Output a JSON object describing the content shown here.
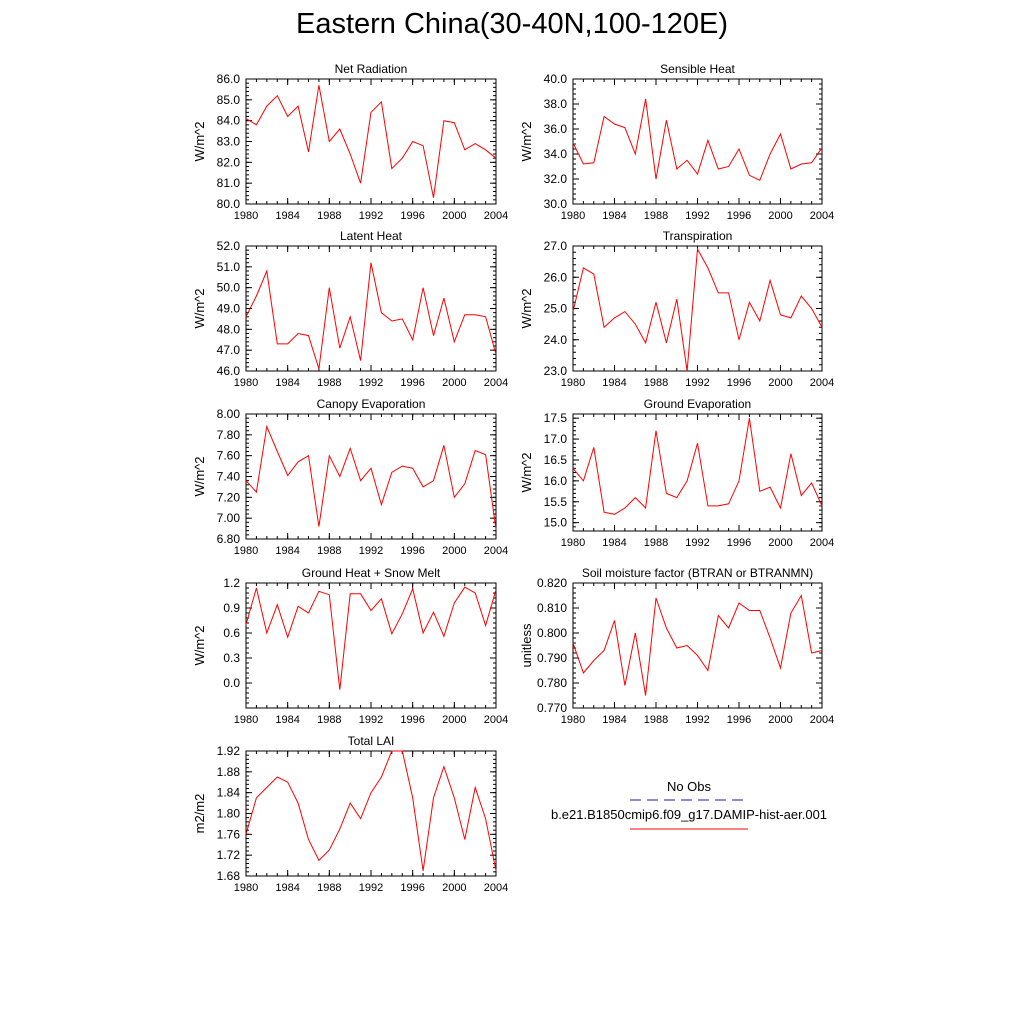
{
  "figure": {
    "title": "Eastern China(30-40N,100-120E)"
  },
  "legend": {
    "entries": [
      {
        "label": "No Obs",
        "color": "#1a1aa8",
        "dash": true
      },
      {
        "label": "b.e21.B1850cmip6.f09_g17.DAMIP-hist-aer.001",
        "color": "#ff0000",
        "dash": false
      }
    ]
  },
  "chart_data": [
    {
      "type": "line",
      "title": "Net Radiation",
      "ylabel": "W/m^2",
      "xlim": [
        1980,
        2004
      ],
      "ylim": [
        80.0,
        86.0
      ],
      "xticks": [
        "1980",
        "1984",
        "1988",
        "1992",
        "1996",
        "2000",
        "2004"
      ],
      "yticks": [
        "80.0",
        "81.0",
        "82.0",
        "83.0",
        "84.0",
        "85.0",
        "86.0"
      ],
      "series": [
        {
          "color": "#ff0000",
          "x": [
            1980,
            1981,
            1982,
            1983,
            1984,
            1985,
            1986,
            1987,
            1988,
            1989,
            1990,
            1991,
            1992,
            1993,
            1994,
            1995,
            1996,
            1997,
            1998,
            1999,
            2000,
            2001,
            2002,
            2003,
            2004
          ],
          "values": [
            84.1,
            83.8,
            84.7,
            85.2,
            84.2,
            84.7,
            82.5,
            85.7,
            83.0,
            83.6,
            82.4,
            81.0,
            84.4,
            84.9,
            81.7,
            82.2,
            83.0,
            82.8,
            80.3,
            84.0,
            83.9,
            82.6,
            82.9,
            82.6,
            82.2
          ]
        }
      ]
    },
    {
      "type": "line",
      "title": "Sensible Heat",
      "ylabel": "W/m^2",
      "xlim": [
        1980,
        2004
      ],
      "ylim": [
        30.0,
        40.0
      ],
      "xticks": [
        "1980",
        "1984",
        "1988",
        "1992",
        "1996",
        "2000",
        "2004"
      ],
      "yticks": [
        "30.0",
        "32.0",
        "34.0",
        "36.0",
        "38.0",
        "40.0"
      ],
      "series": [
        {
          "color": "#ff0000",
          "x": [
            1980,
            1981,
            1982,
            1983,
            1984,
            1985,
            1986,
            1987,
            1988,
            1989,
            1990,
            1991,
            1992,
            1993,
            1994,
            1995,
            1996,
            1997,
            1998,
            1999,
            2000,
            2001,
            2002,
            2003,
            2004
          ],
          "values": [
            34.9,
            33.2,
            33.3,
            37.0,
            36.4,
            36.1,
            34.0,
            38.4,
            32.0,
            36.7,
            32.8,
            33.5,
            32.4,
            35.1,
            32.8,
            33.0,
            34.4,
            32.3,
            31.9,
            34.0,
            35.6,
            32.8,
            33.2,
            33.3,
            34.5
          ]
        }
      ]
    },
    {
      "type": "line",
      "title": "Latent Heat",
      "ylabel": "W/m^2",
      "xlim": [
        1980,
        2004
      ],
      "ylim": [
        46.0,
        52.0
      ],
      "xticks": [
        "1980",
        "1984",
        "1988",
        "1992",
        "1996",
        "2000",
        "2004"
      ],
      "yticks": [
        "46.0",
        "47.0",
        "48.0",
        "49.0",
        "50.0",
        "51.0",
        "52.0"
      ],
      "series": [
        {
          "color": "#ff0000",
          "x": [
            1980,
            1981,
            1982,
            1983,
            1984,
            1985,
            1986,
            1987,
            1988,
            1989,
            1990,
            1991,
            1992,
            1993,
            1994,
            1995,
            1996,
            1997,
            1998,
            1999,
            2000,
            2001,
            2002,
            2003,
            2004
          ],
          "values": [
            48.6,
            49.6,
            50.8,
            47.3,
            47.3,
            47.8,
            47.7,
            46.1,
            50.0,
            47.1,
            48.6,
            46.5,
            51.2,
            48.8,
            48.4,
            48.5,
            47.5,
            50.0,
            47.7,
            49.5,
            47.4,
            48.7,
            48.7,
            48.6,
            46.8
          ]
        }
      ]
    },
    {
      "type": "line",
      "title": "Transpiration",
      "ylabel": "W/m^2",
      "xlim": [
        1980,
        2004
      ],
      "ylim": [
        23.0,
        27.0
      ],
      "xticks": [
        "1980",
        "1984",
        "1988",
        "1992",
        "1996",
        "2000",
        "2004"
      ],
      "yticks": [
        "23.0",
        "24.0",
        "25.0",
        "26.0",
        "27.0"
      ],
      "series": [
        {
          "color": "#ff0000",
          "x": [
            1980,
            1981,
            1982,
            1983,
            1984,
            1985,
            1986,
            1987,
            1988,
            1989,
            1990,
            1991,
            1992,
            1993,
            1994,
            1995,
            1996,
            1997,
            1998,
            1999,
            2000,
            2001,
            2002,
            2003,
            2004
          ],
          "values": [
            24.9,
            26.3,
            26.1,
            24.4,
            24.7,
            24.9,
            24.5,
            23.9,
            25.2,
            23.9,
            25.3,
            23.0,
            26.9,
            26.3,
            25.5,
            25.5,
            24.0,
            25.2,
            24.6,
            25.9,
            24.8,
            24.7,
            25.4,
            25.0,
            24.4
          ]
        }
      ]
    },
    {
      "type": "line",
      "title": "Canopy Evaporation",
      "ylabel": "W/m^2",
      "xlim": [
        1980,
        2004
      ],
      "ylim": [
        6.8,
        8.0
      ],
      "xticks": [
        "1980",
        "1984",
        "1988",
        "1992",
        "1996",
        "2000",
        "2004"
      ],
      "yticks": [
        "6.80",
        "7.00",
        "7.20",
        "7.40",
        "7.60",
        "7.80",
        "8.00"
      ],
      "series": [
        {
          "color": "#ff0000",
          "x": [
            1980,
            1981,
            1982,
            1983,
            1984,
            1985,
            1986,
            1987,
            1988,
            1989,
            1990,
            1991,
            1992,
            1993,
            1994,
            1995,
            1996,
            1997,
            1998,
            1999,
            2000,
            2001,
            2002,
            2003,
            2004
          ],
          "values": [
            7.36,
            7.25,
            7.88,
            7.64,
            7.41,
            7.54,
            7.6,
            6.92,
            7.6,
            7.4,
            7.67,
            7.36,
            7.48,
            7.13,
            7.44,
            7.5,
            7.48,
            7.3,
            7.36,
            7.7,
            7.2,
            7.33,
            7.65,
            7.61,
            6.89
          ]
        }
      ]
    },
    {
      "type": "line",
      "title": "Ground Evaporation",
      "ylabel": "W/m^2",
      "xlim": [
        1980,
        2004
      ],
      "ylim": [
        14.8,
        17.6
      ],
      "xticks": [
        "1980",
        "1984",
        "1988",
        "1992",
        "1996",
        "2000",
        "2004"
      ],
      "yticks": [
        "15.0",
        "15.5",
        "16.0",
        "16.5",
        "17.0",
        "17.5"
      ],
      "series": [
        {
          "color": "#ff0000",
          "x": [
            1980,
            1981,
            1982,
            1983,
            1984,
            1985,
            1986,
            1987,
            1988,
            1989,
            1990,
            1991,
            1992,
            1993,
            1994,
            1995,
            1996,
            1997,
            1998,
            1999,
            2000,
            2001,
            2002,
            2003,
            2004
          ],
          "values": [
            16.3,
            16.0,
            16.8,
            15.25,
            15.2,
            15.35,
            15.6,
            15.35,
            17.2,
            15.7,
            15.6,
            16.0,
            16.9,
            15.4,
            15.4,
            15.45,
            16.0,
            17.5,
            15.75,
            15.85,
            15.35,
            16.65,
            15.65,
            15.95,
            15.4
          ]
        }
      ]
    },
    {
      "type": "line",
      "title": "Ground Heat + Snow Melt",
      "ylabel": "W/m^2",
      "xlim": [
        1980,
        2004
      ],
      "ylim": [
        -0.3,
        1.2
      ],
      "xticks": [
        "1980",
        "1984",
        "1988",
        "1992",
        "1996",
        "2000",
        "2004"
      ],
      "yticks": [
        "0.0",
        "0.3",
        "0.6",
        "0.9",
        "1.2"
      ],
      "series": [
        {
          "color": "#ff0000",
          "x": [
            1980,
            1981,
            1982,
            1983,
            1984,
            1985,
            1986,
            1987,
            1988,
            1989,
            1990,
            1991,
            1992,
            1993,
            1994,
            1995,
            1996,
            1997,
            1998,
            1999,
            2000,
            2001,
            2002,
            2003,
            2004
          ],
          "values": [
            0.7,
            1.14,
            0.6,
            0.94,
            0.55,
            0.92,
            0.84,
            1.1,
            1.06,
            -0.08,
            1.07,
            1.07,
            0.87,
            1.01,
            0.59,
            0.83,
            1.13,
            0.6,
            0.85,
            0.56,
            0.96,
            1.15,
            1.08,
            0.69,
            1.12
          ]
        }
      ]
    },
    {
      "type": "line",
      "title": "Soil moisture factor (BTRAN or BTRANMN)",
      "ylabel": "unitless",
      "xlim": [
        1980,
        2004
      ],
      "ylim": [
        0.77,
        0.82
      ],
      "xticks": [
        "1980",
        "1984",
        "1988",
        "1992",
        "1996",
        "2000",
        "2004"
      ],
      "yticks": [
        "0.770",
        "0.780",
        "0.790",
        "0.800",
        "0.810",
        "0.820"
      ],
      "series": [
        {
          "color": "#ff0000",
          "x": [
            1980,
            1981,
            1982,
            1983,
            1984,
            1985,
            1986,
            1987,
            1988,
            1989,
            1990,
            1991,
            1992,
            1993,
            1994,
            1995,
            1996,
            1997,
            1998,
            1999,
            2000,
            2001,
            2002,
            2003,
            2004
          ],
          "values": [
            0.796,
            0.784,
            0.789,
            0.793,
            0.805,
            0.779,
            0.8,
            0.775,
            0.814,
            0.802,
            0.794,
            0.795,
            0.791,
            0.785,
            0.807,
            0.802,
            0.812,
            0.809,
            0.809,
            0.798,
            0.786,
            0.808,
            0.815,
            0.792,
            0.793
          ]
        }
      ]
    },
    {
      "type": "line",
      "title": "Total LAI",
      "ylabel": "m2/m2",
      "xlim": [
        1980,
        2004
      ],
      "ylim": [
        1.68,
        1.92
      ],
      "xticks": [
        "1980",
        "1984",
        "1988",
        "1992",
        "1996",
        "2000",
        "2004"
      ],
      "yticks": [
        "1.68",
        "1.72",
        "1.76",
        "1.80",
        "1.84",
        "1.88",
        "1.92"
      ],
      "series": [
        {
          "color": "#ff0000",
          "x": [
            1980,
            1981,
            1982,
            1983,
            1984,
            1985,
            1986,
            1987,
            1988,
            1989,
            1990,
            1991,
            1992,
            1993,
            1994,
            1995,
            1996,
            1997,
            1998,
            1999,
            2000,
            2001,
            2002,
            2003,
            2004
          ],
          "values": [
            1.76,
            1.83,
            1.85,
            1.87,
            1.86,
            1.82,
            1.75,
            1.71,
            1.73,
            1.77,
            1.82,
            1.79,
            1.84,
            1.87,
            1.92,
            1.92,
            1.83,
            1.69,
            1.83,
            1.89,
            1.83,
            1.75,
            1.85,
            1.79,
            1.69
          ]
        }
      ]
    }
  ]
}
